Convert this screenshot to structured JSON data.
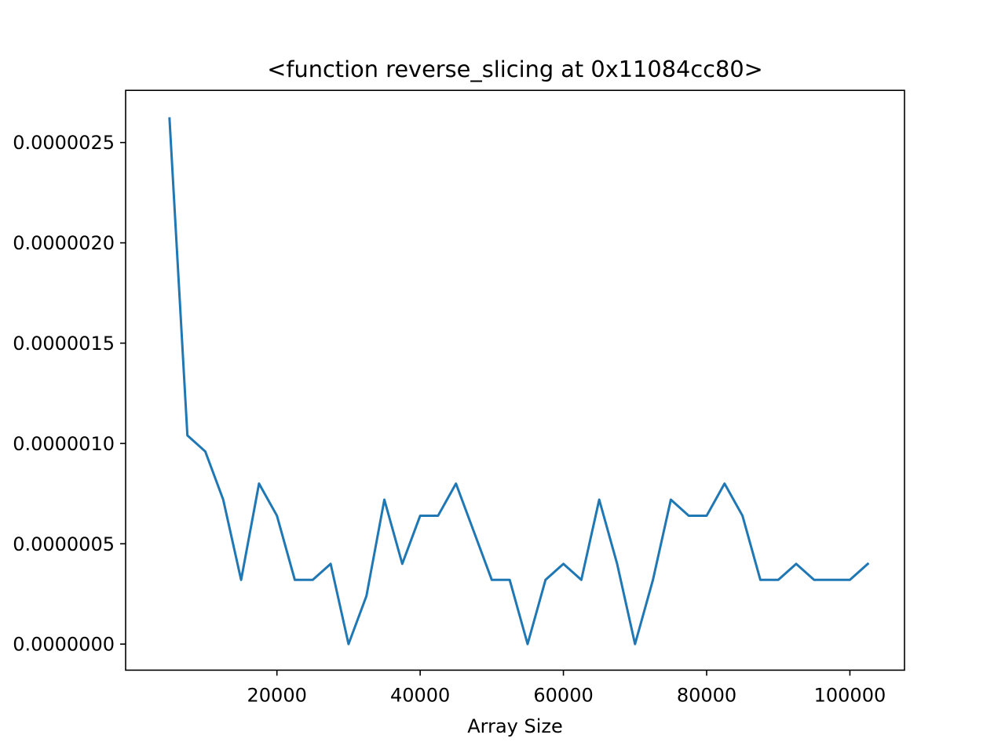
{
  "chart_data": {
    "type": "line",
    "title": "<function reverse_slicing at 0x11084cc80>",
    "xlabel": "Array Size",
    "ylabel": "",
    "xlim": [
      -1125,
      107625
    ],
    "ylim": [
      -1.3e-07,
      2.76e-06
    ],
    "grid": false,
    "legend": "none",
    "x_ticks": [
      20000,
      40000,
      60000,
      80000,
      100000
    ],
    "x_tick_labels": [
      "20000",
      "40000",
      "60000",
      "80000",
      "100000"
    ],
    "y_ticks": [
      0,
      5e-07,
      1e-06,
      1.5e-06,
      2e-06,
      2.5e-06
    ],
    "y_tick_labels": [
      "0.0000000",
      "0.0000005",
      "0.0000010",
      "0.0000015",
      "0.0000020",
      "0.0000025"
    ],
    "series": [
      {
        "color": "#1f77b4",
        "x": [
          5000,
          7500,
          10000,
          12500,
          15000,
          17500,
          20000,
          22500,
          25000,
          27500,
          30000,
          32500,
          35000,
          37500,
          40000,
          42500,
          45000,
          47500,
          50000,
          52500,
          55000,
          57500,
          60000,
          62500,
          65000,
          67500,
          70000,
          72500,
          75000,
          77500,
          80000,
          82500,
          85000,
          87500,
          90000,
          92500,
          95000,
          97500,
          100000,
          102500
        ],
        "y": [
          2.62e-06,
          1.04e-06,
          9.6e-07,
          7.2e-07,
          3.2e-07,
          8e-07,
          6.4e-07,
          3.2e-07,
          3.2e-07,
          4e-07,
          0.0,
          2.4e-07,
          7.2e-07,
          4e-07,
          6.4e-07,
          6.4e-07,
          8e-07,
          5.6e-07,
          3.2e-07,
          3.2e-07,
          0.0,
          3.2e-07,
          4e-07,
          3.2e-07,
          7.2e-07,
          4e-07,
          0.0,
          3.2e-07,
          7.2e-07,
          6.4e-07,
          6.4e-07,
          8e-07,
          6.4e-07,
          3.2e-07,
          3.2e-07,
          4e-07,
          3.2e-07,
          3.2e-07,
          3.2e-07,
          4e-07
        ]
      }
    ]
  }
}
